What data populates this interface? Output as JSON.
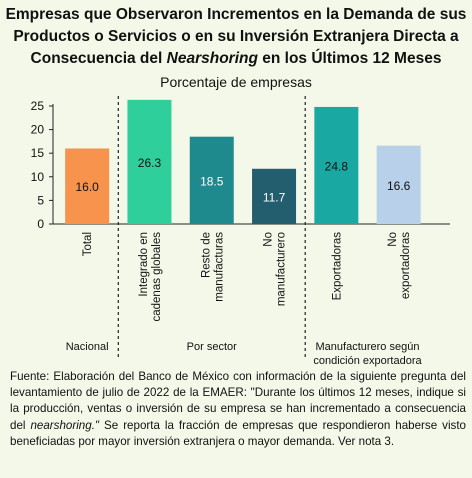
{
  "title": {
    "line1": "Empresas que Observaron Incrementos en la Demanda de sus",
    "line2": "Productos o Servicios o en su Inversión Extranjera Directa a",
    "line3_before": "Consecuencia del ",
    "line3_italic": "Nearshoring",
    "line3_after": " en los Últimos 12 Meses"
  },
  "subtitle": "Porcentaje de empresas",
  "chart_data": {
    "type": "bar",
    "title": "Empresas que Observaron Incrementos en la Demanda de sus Productos o Servicios o en su Inversión Extranjera Directa a Consecuencia del Nearshoring en los Últimos 12 Meses",
    "ylabel": "Porcentaje de empresas",
    "ylim": [
      0,
      25
    ],
    "yticks": [
      0,
      5,
      10,
      15,
      20,
      25
    ],
    "grid": false,
    "categories": [
      [
        "Total"
      ],
      [
        "Integrado en",
        "cadenas globales"
      ],
      [
        "Resto de",
        "manufacturas"
      ],
      [
        "No",
        "manufacturero"
      ],
      [
        "Exportadoras"
      ],
      [
        "No",
        "exportadoras"
      ]
    ],
    "values": [
      16.0,
      26.3,
      18.5,
      11.7,
      24.8,
      16.6
    ],
    "value_labels": [
      "16.0",
      "26.3",
      "18.5",
      "11.7",
      "24.8",
      "16.6"
    ],
    "colors": [
      "#f7934c",
      "#2ecf9b",
      "#1e8a8d",
      "#235e6f",
      "#1aa9a2",
      "#b8d0ea"
    ],
    "label_colors": [
      "#111111",
      "#111111",
      "#ffffff",
      "#ffffff",
      "#111111",
      "#111111"
    ],
    "groups": [
      {
        "label": [
          "Nacional"
        ],
        "bars": [
          0
        ]
      },
      {
        "label": [
          "Por sector"
        ],
        "bars": [
          1,
          2,
          3
        ]
      },
      {
        "label": [
          "Manufacturero según",
          "condición exportadora"
        ],
        "bars": [
          4,
          5
        ]
      }
    ]
  },
  "footnote": {
    "part1": "Fuente: Elaboración del Banco de México con información de la siguiente pregunta del levantamiento de julio de 2022 de la EMAER: \"Durante los últimos 12 meses, indique si la producción, ventas o inversión de su empresa se han incrementado a consecuencia del ",
    "italic": "nearshoring.\"",
    "part2": " Se reporta la fracción de empresas que respondieron haberse visto beneficiadas por mayor inversión extranjera o mayor demanda. Ver nota 3."
  }
}
